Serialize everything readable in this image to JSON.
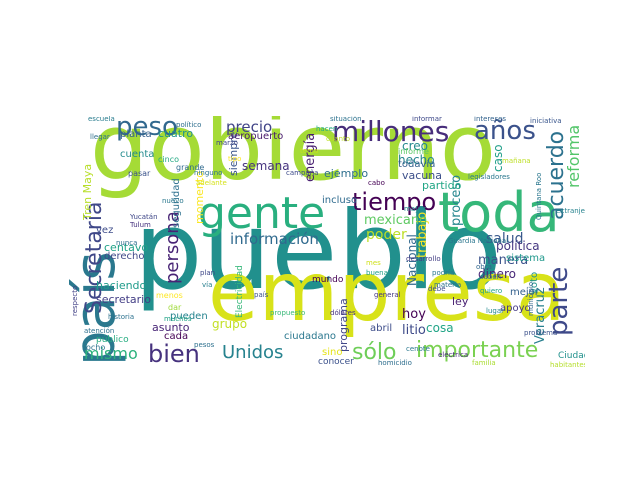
{
  "cloud": {
    "words": [
      {
        "text": "pueblo",
        "color": "#21908d"
      },
      {
        "text": "gobierno",
        "color": "#a5db36"
      },
      {
        "text": "empresa",
        "color": "#d8e219"
      },
      {
        "text": "toda",
        "color": "#35b779"
      },
      {
        "text": "país",
        "color": "#2a788e"
      },
      {
        "text": "gente",
        "color": "#29af7f"
      },
      {
        "text": "millones",
        "color": "#472d7b"
      },
      {
        "text": "años",
        "color": "#3b528b"
      },
      {
        "text": "peso",
        "color": "#31688e"
      },
      {
        "text": "parte",
        "color": "#3e4989"
      },
      {
        "text": "tiempo",
        "color": "#440154"
      },
      {
        "text": "importante",
        "color": "#7ad151"
      },
      {
        "text": "sólo",
        "color": "#6ece58"
      },
      {
        "text": "bien",
        "color": "#46327e"
      },
      {
        "text": "mismo",
        "color": "#2db27d"
      },
      {
        "text": "Unidos",
        "color": "#26828e"
      },
      {
        "text": "Secretaría",
        "color": "#3f4788"
      },
      {
        "text": "persona",
        "color": "#482475"
      },
      {
        "text": "acuerdo",
        "color": "#2c728e"
      },
      {
        "text": "reforma",
        "color": "#52c569"
      },
      {
        "text": "información",
        "color": "#306a8e"
      },
      {
        "text": "precio",
        "color": "#414487"
      },
      {
        "text": "energía",
        "color": "#481f70"
      },
      {
        "text": "poder",
        "color": "#bddf26"
      },
      {
        "text": "salud",
        "color": "#38588c"
      },
      {
        "text": "caso",
        "color": "#1f9e89"
      },
      {
        "text": "proceso",
        "color": "#24868e"
      },
      {
        "text": "trabajo",
        "color": "#fde725"
      },
      {
        "text": "mexicano",
        "color": "#5ec962"
      },
      {
        "text": "Veracruz",
        "color": "#277f8e"
      },
      {
        "text": "manera",
        "color": "#3b528b"
      },
      {
        "text": "dinero",
        "color": "#482878"
      },
      {
        "text": "política",
        "color": "#453781"
      },
      {
        "text": "hoy",
        "color": "#440154"
      },
      {
        "text": "programa",
        "color": "#404688"
      },
      {
        "text": "litio",
        "color": "#3e4a89"
      },
      {
        "text": "hecho",
        "color": "#25858e"
      },
      {
        "text": "ejemplo",
        "color": "#2e6f8e"
      },
      {
        "text": "creo",
        "color": "#23898e"
      },
      {
        "text": "partido",
        "color": "#21a685"
      },
      {
        "text": "Nacional",
        "color": "#31688e"
      },
      {
        "text": "grupo",
        "color": "#c2df23"
      },
      {
        "text": "semana",
        "color": "#46337f"
      },
      {
        "text": "siempre",
        "color": "#3a548c"
      },
      {
        "text": "momento",
        "color": "#fbe723"
      },
      {
        "text": "cuatro",
        "color": "#20928c"
      },
      {
        "text": "aeropuerto",
        "color": "#481a6c"
      },
      {
        "text": "seguridad",
        "color": "#2d708e"
      },
      {
        "text": "centavo",
        "color": "#1fa187"
      },
      {
        "text": "haciendo",
        "color": "#1e9b8a"
      },
      {
        "text": "secretario",
        "color": "#433e85"
      },
      {
        "text": "asunto",
        "color": "#482576"
      },
      {
        "text": "cada",
        "color": "#440154"
      },
      {
        "text": "pueden",
        "color": "#25838e"
      },
      {
        "text": "Tren Maya",
        "color": "#b8de29"
      },
      {
        "text": "vacuna",
        "color": "#3c4f8a"
      },
      {
        "text": "todavía",
        "color": "#34608d"
      },
      {
        "text": "cosa",
        "color": "#20a486"
      },
      {
        "text": "ciudadano",
        "color": "#2a778e"
      },
      {
        "text": "sino",
        "color": "#e5e419"
      },
      {
        "text": "abril",
        "color": "#3d4d8a"
      },
      {
        "text": "ley",
        "color": "#482071"
      },
      {
        "text": "apoyo",
        "color": "#443983"
      },
      {
        "text": "mejor",
        "color": "#34618d"
      },
      {
        "text": "voto",
        "color": "#20938c"
      },
      {
        "text": "incluso",
        "color": "#2f6b8e"
      },
      {
        "text": "sistema",
        "color": "#1f988b"
      },
      {
        "text": "mundo",
        "color": "#440154"
      },
      {
        "text": "conocer",
        "color": "#3b518b"
      },
      {
        "text": "cuenta",
        "color": "#228b8d"
      },
      {
        "text": "planta",
        "color": "#355f8d"
      },
      {
        "text": "vez",
        "color": "#3e4c8a"
      },
      {
        "text": "derecho",
        "color": "#3f4889"
      },
      {
        "text": "Electricidad",
        "color": "#35b779"
      },
      {
        "text": "público",
        "color": "#27ad81"
      },
      {
        "text": "ocho",
        "color": "#2c738e"
      },
      {
        "text": "Ciudad",
        "color": "#21918c"
      },
      {
        "text": "Guardia Nacional",
        "color": "#2a768e"
      },
      {
        "text": "cinco",
        "color": "#23a983"
      },
      {
        "text": "informe",
        "color": "#5ac864"
      },
      {
        "text": "pasar",
        "color": "#3a538b"
      },
      {
        "text": "grande",
        "color": "#306a8e"
      },
      {
        "text": "menos",
        "color": "#fde725"
      },
      {
        "text": "dar",
        "color": "#9fda3a"
      },
      {
        "text": "tipo",
        "color": "#fde725"
      },
      {
        "text": "tema",
        "color": "#c8e020"
      },
      {
        "text": "adelante",
        "color": "#d5e21a"
      },
      {
        "text": "mañana",
        "color": "#bddf26"
      },
      {
        "text": "iniciativa",
        "color": "#39568c"
      },
      {
        "text": "intereses",
        "color": "#33638d"
      },
      {
        "text": "informar",
        "color": "#3e4989"
      },
      {
        "text": "situación",
        "color": "#2c728e"
      },
      {
        "text": "escuela",
        "color": "#287c8e"
      },
      {
        "text": "político",
        "color": "#2e6e8e"
      },
      {
        "text": "marzo",
        "color": "#3f4788"
      },
      {
        "text": "hacen",
        "color": "#25ab82"
      },
      {
        "text": "cuanto",
        "color": "#c0df25"
      },
      {
        "text": "cabo",
        "color": "#440154"
      },
      {
        "text": "plan",
        "color": "#3f4889"
      },
      {
        "text": "vía",
        "color": "#277e8e"
      },
      {
        "text": "dólares",
        "color": "#46307e"
      },
      {
        "text": "propuesto",
        "color": "#37b878"
      },
      {
        "text": "país",
        "color": "#3b528b"
      },
      {
        "text": "historia",
        "color": "#2c718e"
      },
      {
        "text": "pesos",
        "color": "#2d708e"
      },
      {
        "text": "general",
        "color": "#453882"
      },
      {
        "text": "buena",
        "color": "#1f9f88"
      },
      {
        "text": "mes",
        "color": "#d0e11c"
      },
      {
        "text": "lugar",
        "color": "#23888e"
      },
      {
        "text": "quiero",
        "color": "#1fa287"
      },
      {
        "text": "obra",
        "color": "#31678e"
      },
      {
        "text": "saben",
        "color": "#2b758e"
      },
      {
        "text": "debe",
        "color": "#3d4e8a"
      },
      {
        "text": "cenote",
        "color": "#2a788e"
      },
      {
        "text": "familia",
        "color": "#aadc32"
      },
      {
        "text": "problema",
        "color": "#3b518b"
      },
      {
        "text": "Quintana Roo",
        "color": "#2a778e"
      },
      {
        "text": "municipio",
        "color": "#31678e"
      },
      {
        "text": "homicidio",
        "color": "#2e6e8e"
      },
      {
        "text": "habitantes",
        "color": "#b5de2b"
      },
      {
        "text": "materia",
        "color": "#2c728e"
      },
      {
        "text": "podría",
        "color": "#2a788e"
      },
      {
        "text": "desarrollo",
        "color": "#433d84"
      },
      {
        "text": "nuevo",
        "color": "#2a788e"
      },
      {
        "text": "mayor",
        "color": "#23898e"
      },
      {
        "text": "llegar",
        "color": "#2e6f8e"
      },
      {
        "text": "respecto",
        "color": "#424186"
      },
      {
        "text": "atención",
        "color": "#2d708e"
      },
      {
        "text": "Yucatán",
        "color": "#3f4788"
      },
      {
        "text": "Tulum",
        "color": "#46327e"
      },
      {
        "text": "nunca",
        "color": "#2e6e8e"
      },
      {
        "text": "campaña",
        "color": "#3e4c8a"
      },
      {
        "text": "muchos",
        "color": "#20a386"
      },
      {
        "text": "eléctrica",
        "color": "#472a7a"
      },
      {
        "text": "legisladores",
        "color": "#2a788e"
      },
      {
        "text": "extranjero",
        "color": "#26828e"
      },
      {
        "text": "ninguno",
        "color": "#2c738e"
      }
    ]
  }
}
